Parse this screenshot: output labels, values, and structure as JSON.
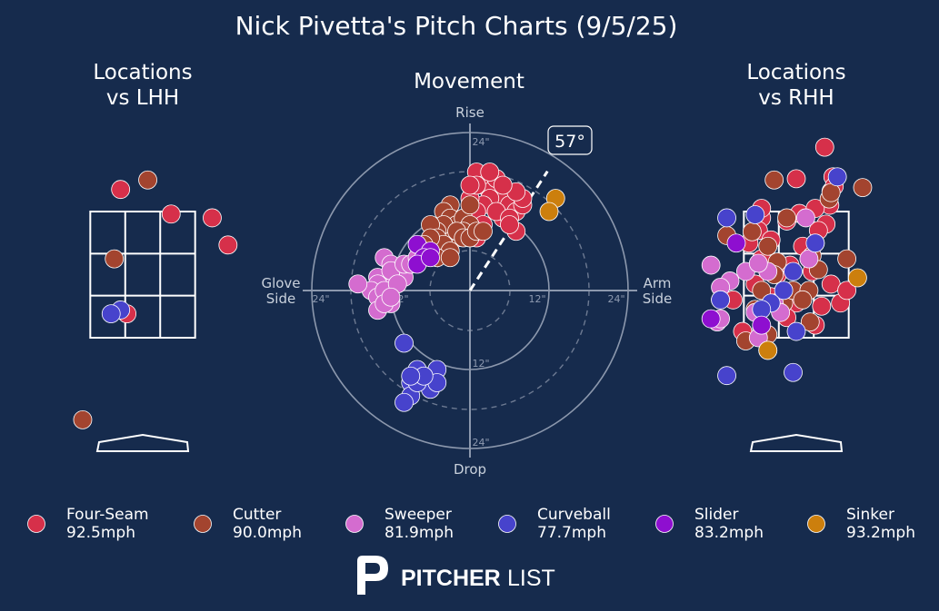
{
  "title": "Nick Pivetta's Pitch Charts (9/5/25)",
  "panels": {
    "lhh_title": [
      "Locations",
      "vs LHH"
    ],
    "rhh_title": [
      "Locations",
      "vs RHH"
    ],
    "movement_title": "Movement"
  },
  "movement_axes": {
    "top": "Rise",
    "bottom": "Drop",
    "left": [
      "Glove",
      "Side"
    ],
    "right": [
      "Arm",
      "Side"
    ],
    "ticks": [
      "12\"",
      "24\""
    ],
    "arm_angle_label": "57°",
    "arm_angle_deg": 57
  },
  "brand": {
    "logo_text_bold": "PITCHER",
    "logo_text_light": "LIST"
  },
  "chart_data": [
    {
      "type": "scatter",
      "name": "movement",
      "units": "inches",
      "xlim": [
        -24,
        24
      ],
      "ylim": [
        -24,
        24
      ],
      "series": [
        {
          "name": "Four-Seam",
          "color": "#d6304a",
          "points": [
            [
              1,
              18
            ],
            [
              2,
              16
            ],
            [
              3,
              15
            ],
            [
              4,
              17
            ],
            [
              5,
              14
            ],
            [
              6,
              13
            ],
            [
              7,
              12
            ],
            [
              5,
              11
            ],
            [
              3,
              14
            ],
            [
              2,
              13
            ],
            [
              0,
              14
            ],
            [
              1,
              12
            ],
            [
              4,
              12
            ],
            [
              6,
              11
            ],
            [
              8,
              13
            ],
            [
              8,
              14
            ],
            [
              7,
              15
            ],
            [
              5,
              16
            ],
            [
              3,
              18
            ],
            [
              1,
              16
            ],
            [
              0,
              16
            ],
            [
              2,
              10
            ],
            [
              7,
              9
            ],
            [
              6,
              10
            ],
            [
              1,
              8
            ],
            [
              0,
              9
            ]
          ]
        },
        {
          "name": "Cutter",
          "color": "#a3442f",
          "points": [
            [
              -3,
              13
            ],
            [
              -4,
              12
            ],
            [
              -3,
              11
            ],
            [
              -2,
              10
            ],
            [
              -1,
              11
            ],
            [
              0,
              10
            ],
            [
              -1,
              9
            ],
            [
              -2,
              8
            ],
            [
              -3,
              9
            ],
            [
              -4,
              10
            ],
            [
              -5,
              9
            ],
            [
              -6,
              10
            ],
            [
              -5,
              8
            ],
            [
              -4,
              7
            ],
            [
              -3,
              6
            ],
            [
              -6,
              8
            ],
            [
              -7,
              7
            ],
            [
              -5,
              5
            ],
            [
              -2,
              9
            ],
            [
              -1,
              8
            ],
            [
              0,
              8
            ],
            [
              1,
              9
            ],
            [
              2,
              9
            ],
            [
              0,
              13
            ],
            [
              -3,
              5
            ]
          ]
        },
        {
          "name": "Sweeper",
          "color": "#d46ccf",
          "points": [
            [
              -13,
              5
            ],
            [
              -12,
              4
            ],
            [
              -11,
              3
            ],
            [
              -10,
              2
            ],
            [
              -12,
              2
            ],
            [
              -13,
              1
            ],
            [
              -14,
              2
            ],
            [
              -14,
              1
            ],
            [
              -15,
              0
            ],
            [
              -14,
              -1
            ],
            [
              -13,
              0
            ],
            [
              -12,
              3
            ],
            [
              -10,
              4
            ],
            [
              -9,
              4
            ],
            [
              -8,
              5
            ],
            [
              -7,
              6
            ],
            [
              -17,
              1
            ],
            [
              -14,
              -3
            ],
            [
              -12,
              -2
            ],
            [
              -13,
              -2
            ],
            [
              -11,
              1
            ],
            [
              -12,
              -1
            ]
          ]
        },
        {
          "name": "Curveball",
          "color": "#4743cc",
          "points": [
            [
              -10,
              -8
            ],
            [
              -8,
              -12
            ],
            [
              -5,
              -12
            ],
            [
              -7,
              -13
            ],
            [
              -9,
              -14
            ],
            [
              -6,
              -15
            ],
            [
              -9,
              -16
            ],
            [
              -10,
              -17
            ],
            [
              -5,
              -14
            ],
            [
              -8,
              -14
            ],
            [
              -7,
              -13
            ],
            [
              -9,
              -13
            ]
          ]
        },
        {
          "name": "Slider",
          "color": "#8e0fd0",
          "points": [
            [
              -8,
              7
            ],
            [
              -6,
              6
            ],
            [
              -7,
              5
            ],
            [
              -8,
              4
            ],
            [
              -6,
              5
            ]
          ]
        },
        {
          "name": "Sinker",
          "color": "#cc7f0d",
          "points": [
            [
              13,
              14
            ],
            [
              12,
              12
            ]
          ]
        }
      ]
    },
    {
      "type": "scatter",
      "name": "locations_vs_lhh",
      "units": "feet",
      "xlim": [
        -2.3,
        2.3
      ],
      "ylim": [
        -0.4,
        5.0
      ],
      "zone": {
        "left": -0.83,
        "right": 0.83,
        "bottom": 1.5,
        "top": 3.5
      },
      "series": [
        {
          "name": "Four-Seam",
          "color": "#d6304a",
          "points": [
            [
              -0.35,
              3.85
            ],
            [
              0.45,
              3.46
            ],
            [
              1.1,
              3.4
            ],
            [
              1.35,
              2.97
            ],
            [
              -0.25,
              1.88
            ]
          ]
        },
        {
          "name": "Cutter",
          "color": "#a3442f",
          "points": [
            [
              0.08,
              4.0
            ],
            [
              -0.45,
              2.75
            ],
            [
              -0.95,
              0.2
            ]
          ]
        },
        {
          "name": "Curveball",
          "color": "#4743cc",
          "points": [
            [
              -0.35,
              1.94
            ],
            [
              -0.5,
              1.88
            ]
          ]
        }
      ]
    },
    {
      "type": "scatter",
      "name": "locations_vs_rhh",
      "units": "feet",
      "xlim": [
        -2.3,
        2.3
      ],
      "ylim": [
        -0.4,
        5.0
      ],
      "zone": {
        "left": -0.83,
        "right": 0.83,
        "bottom": 1.5,
        "top": 3.5
      },
      "series": [
        {
          "name": "Four-Seam",
          "color": "#d6304a",
          "points": [
            [
              0.45,
              4.52
            ],
            [
              0.58,
              4.05
            ],
            [
              0.53,
              3.6
            ],
            [
              0.47,
              3.3
            ],
            [
              0.35,
              3.2
            ],
            [
              0.3,
              3.0
            ],
            [
              0.05,
              3.47
            ],
            [
              -0.15,
              3.35
            ],
            [
              -0.55,
              3.4
            ],
            [
              -0.6,
              3.2
            ],
            [
              -0.4,
              3.05
            ],
            [
              -0.55,
              2.75
            ],
            [
              -0.3,
              2.5
            ],
            [
              -0.1,
              2.65
            ],
            [
              0.1,
              2.95
            ],
            [
              -0.65,
              2.35
            ],
            [
              0.25,
              2.55
            ],
            [
              0.55,
              2.35
            ],
            [
              0.7,
              2.05
            ],
            [
              0.8,
              2.25
            ],
            [
              -0.4,
              2.15
            ],
            [
              0.0,
              2.05
            ],
            [
              -0.15,
              1.82
            ],
            [
              0.3,
              1.7
            ],
            [
              -0.55,
              1.65
            ],
            [
              -0.85,
              1.6
            ],
            [
              0.55,
              3.82
            ],
            [
              0.3,
              3.55
            ],
            [
              0.0,
              4.02
            ],
            [
              -0.55,
              3.55
            ],
            [
              -1.0,
              2.1
            ],
            [
              -0.75,
              3.0
            ],
            [
              0.6,
              3.9
            ],
            [
              0.4,
              2.0
            ]
          ]
        },
        {
          "name": "Cutter",
          "color": "#a3442f",
          "points": [
            [
              1.05,
              3.88
            ],
            [
              0.52,
              3.7
            ],
            [
              -0.7,
              3.18
            ],
            [
              -0.45,
              2.95
            ],
            [
              -0.15,
              3.4
            ],
            [
              -0.3,
              2.7
            ],
            [
              -0.55,
              2.25
            ],
            [
              -0.65,
              1.95
            ],
            [
              -0.2,
              2.05
            ],
            [
              -0.05,
              2.25
            ],
            [
              0.2,
              2.25
            ],
            [
              0.1,
              2.1
            ],
            [
              0.22,
              1.75
            ],
            [
              -0.45,
              1.55
            ],
            [
              -0.8,
              1.45
            ],
            [
              0.8,
              2.75
            ],
            [
              0.25,
              2.8
            ],
            [
              0.35,
              2.58
            ],
            [
              -1.1,
              3.12
            ],
            [
              -0.35,
              2.5
            ],
            [
              -0.35,
              4.0
            ],
            [
              0.55,
              3.8
            ]
          ]
        },
        {
          "name": "Sweeper",
          "color": "#d46ccf",
          "points": [
            [
              -0.45,
              2.55
            ],
            [
              -0.8,
              2.55
            ],
            [
              -1.05,
              2.4
            ],
            [
              -0.6,
              2.68
            ],
            [
              -1.2,
              2.3
            ],
            [
              -1.35,
              2.65
            ],
            [
              0.15,
              3.4
            ],
            [
              0.2,
              2.75
            ],
            [
              -0.35,
              2.05
            ],
            [
              -0.25,
              1.9
            ],
            [
              -0.6,
              1.5
            ],
            [
              -1.25,
              1.75
            ],
            [
              -1.2,
              2.1
            ],
            [
              -0.65,
              1.9
            ],
            [
              -1.2,
              1.8
            ]
          ]
        },
        {
          "name": "Curveball",
          "color": "#4743cc",
          "points": [
            [
              0.65,
              4.05
            ],
            [
              -1.1,
              3.4
            ],
            [
              -0.65,
              3.45
            ],
            [
              -0.2,
              2.25
            ],
            [
              -0.05,
              2.55
            ],
            [
              0.3,
              3.0
            ],
            [
              -1.2,
              2.1
            ],
            [
              -0.4,
              2.05
            ],
            [
              -0.55,
              1.95
            ],
            [
              -1.1,
              0.9
            ],
            [
              0.0,
              1.6
            ],
            [
              -0.05,
              0.95
            ]
          ]
        },
        {
          "name": "Slider",
          "color": "#8e0fd0",
          "points": [
            [
              -0.95,
              3.0
            ],
            [
              -1.35,
              1.8
            ],
            [
              -0.45,
              1.3
            ],
            [
              -0.55,
              1.7
            ]
          ]
        },
        {
          "name": "Sinker",
          "color": "#cc7f0d",
          "points": [
            [
              0.97,
              2.45
            ],
            [
              -0.45,
              1.3
            ]
          ]
        }
      ]
    }
  ],
  "legend": [
    {
      "name": "Four-Seam",
      "speed": "92.5mph",
      "color": "#d6304a"
    },
    {
      "name": "Cutter",
      "speed": "90.0mph",
      "color": "#a3442f"
    },
    {
      "name": "Sweeper",
      "speed": "81.9mph",
      "color": "#d46ccf"
    },
    {
      "name": "Curveball",
      "speed": "77.7mph",
      "color": "#4743cc"
    },
    {
      "name": "Slider",
      "speed": "83.2mph",
      "color": "#8e0fd0"
    },
    {
      "name": "Sinker",
      "speed": "93.2mph",
      "color": "#cc7f0d"
    }
  ]
}
